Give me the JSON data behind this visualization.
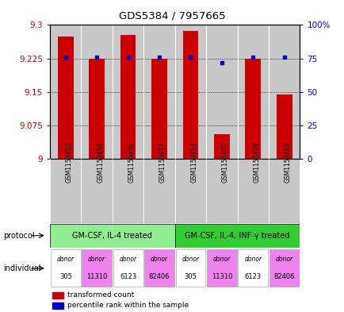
{
  "title": "GDS5384 / 7957665",
  "samples": [
    "GSM1153452",
    "GSM1153454",
    "GSM1153456",
    "GSM1153457",
    "GSM1153453",
    "GSM1153455",
    "GSM1153459",
    "GSM1153458"
  ],
  "red_values": [
    9.275,
    9.225,
    9.278,
    9.225,
    9.287,
    9.055,
    9.225,
    9.145
  ],
  "blue_values": [
    76,
    76,
    76,
    76,
    76,
    72,
    76,
    76
  ],
  "ylim": [
    9.0,
    9.3
  ],
  "yticks": [
    9.0,
    9.075,
    9.15,
    9.225,
    9.3
  ],
  "ytick_labels": [
    "9",
    "9.075",
    "9.15",
    "9.225",
    "9.3"
  ],
  "y2lim": [
    0,
    100
  ],
  "y2ticks": [
    0,
    25,
    50,
    75,
    100
  ],
  "y2tick_labels": [
    "0",
    "25",
    "50",
    "75",
    "100%"
  ],
  "protocol_groups": [
    {
      "label": "GM-CSF, IL-4 treated",
      "indices": [
        0,
        1,
        2,
        3
      ],
      "color": "#90EE90"
    },
    {
      "label": "GM-CSF, IL-4, INF-γ treated",
      "indices": [
        4,
        5,
        6,
        7
      ],
      "color": "#32CD32"
    }
  ],
  "individuals": [
    {
      "label": "donor\n305",
      "color": "#FFFFFF",
      "index": 0
    },
    {
      "label": "donor\n11310",
      "color": "#EE82EE",
      "index": 1
    },
    {
      "label": "donor\n6123",
      "color": "#FFFFFF",
      "index": 2
    },
    {
      "label": "donor\n82406",
      "color": "#EE82EE",
      "index": 3
    },
    {
      "label": "donor\n305",
      "color": "#FFFFFF",
      "index": 4
    },
    {
      "label": "donor\n11310",
      "color": "#EE82EE",
      "index": 5
    },
    {
      "label": "donor\n6123",
      "color": "#FFFFFF",
      "index": 6
    },
    {
      "label": "donor\n82406",
      "color": "#EE82EE",
      "index": 7
    }
  ],
  "bar_color": "#CC0000",
  "dot_color": "#0000CC",
  "bar_width": 0.5,
  "cell_bg": "#C8C8C8",
  "background_color": "#FFFFFF",
  "label_color_left": "#CC0000",
  "label_color_right": "#0000CC",
  "grid_color": "#000000",
  "border_color": "#000000"
}
